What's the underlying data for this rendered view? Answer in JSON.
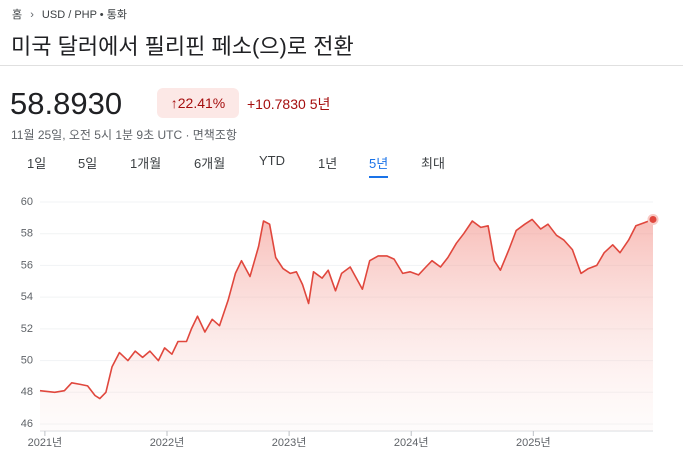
{
  "header": {
    "breadcrumb": [
      "홈",
      "USD / PHP • 통화"
    ],
    "title": "미국 달러에서 필리핀 페소(으)로 전환",
    "price": "58.8930",
    "change_percent": "22.41%",
    "change_value": "+10.7830",
    "change_period": "5년",
    "timestamp": "11월 25일, 오전 5시 1분 9초 UTC · 면책조항"
  },
  "tabs": {
    "items": [
      "1일",
      "5일",
      "1개월",
      "6개월",
      "YTD",
      "1년",
      "5년",
      "최대"
    ],
    "selected": 6
  },
  "chart_data": {
    "type": "line",
    "color": "#e0473d",
    "grid": true,
    "x": [
      2020.96,
      2021.08,
      2021.16,
      2021.22,
      2021.29,
      2021.35,
      2021.41,
      2021.45,
      2021.5,
      2021.55,
      2021.61,
      2021.68,
      2021.74,
      2021.8,
      2021.86,
      2021.93,
      2021.98,
      2022.04,
      2022.09,
      2022.16,
      2022.2,
      2022.25,
      2022.31,
      2022.37,
      2022.43,
      2022.5,
      2022.56,
      2022.61,
      2022.68,
      2022.75,
      2022.79,
      2022.84,
      2022.89,
      2022.95,
      2023.01,
      2023.06,
      2023.11,
      2023.16,
      2023.2,
      2023.27,
      2023.32,
      2023.38,
      2023.43,
      2023.5,
      2023.55,
      2023.6,
      2023.66,
      2023.73,
      2023.8,
      2023.86,
      2023.93,
      2023.99,
      2024.06,
      2024.12,
      2024.17,
      2024.24,
      2024.3,
      2024.37,
      2024.43,
      2024.5,
      2024.57,
      2024.63,
      2024.68,
      2024.73,
      2024.8,
      2024.86,
      2024.93,
      2024.99,
      2025.06,
      2025.12,
      2025.19,
      2025.25,
      2025.32,
      2025.39,
      2025.45,
      2025.52,
      2025.58,
      2025.65,
      2025.71,
      2025.78,
      2025.84,
      2025.91,
      2025.98
    ],
    "values": [
      48.1,
      48.0,
      48.1,
      48.6,
      48.5,
      48.4,
      47.8,
      47.6,
      48.0,
      49.6,
      50.5,
      50.0,
      50.6,
      50.2,
      50.6,
      50.0,
      50.8,
      50.4,
      51.2,
      51.2,
      52.0,
      52.8,
      51.8,
      52.6,
      52.2,
      53.8,
      55.5,
      56.3,
      55.3,
      57.2,
      58.8,
      58.6,
      56.5,
      55.8,
      55.5,
      55.6,
      54.8,
      53.6,
      55.6,
      55.2,
      55.7,
      54.4,
      55.5,
      55.9,
      55.2,
      54.5,
      56.3,
      56.6,
      56.6,
      56.4,
      55.5,
      55.6,
      55.4,
      55.9,
      56.3,
      55.9,
      56.5,
      57.4,
      58.0,
      58.8,
      58.4,
      58.5,
      56.3,
      55.7,
      57.0,
      58.2,
      58.6,
      58.9,
      58.3,
      58.6,
      57.9,
      57.6,
      57.0,
      55.5,
      55.8,
      56.0,
      56.8,
      57.3,
      56.8,
      57.6,
      58.5,
      58.7,
      58.9
    ],
    "xlim": [
      2020.96,
      2025.98
    ],
    "ylim": [
      46,
      60
    ],
    "xticks": [
      {
        "value": 2021,
        "label": "2021년"
      },
      {
        "value": 2022,
        "label": "2022년"
      },
      {
        "value": 2023,
        "label": "2023년"
      },
      {
        "value": 2024,
        "label": "2024년"
      },
      {
        "value": 2025,
        "label": "2025년"
      }
    ],
    "yticks": [
      46,
      48,
      50,
      52,
      54,
      56,
      58,
      60
    ]
  }
}
